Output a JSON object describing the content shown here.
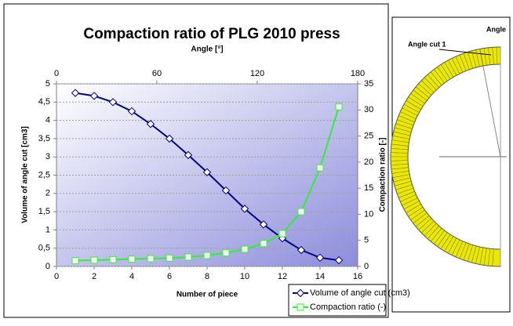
{
  "chart_data": {
    "type": "line",
    "title": "Compaction ratio of PLG 2010 press",
    "xlabel": "Number of piece",
    "ylabel": "Volume of angle cut [cm3]",
    "y2label": "Compaction ratio [-]",
    "x2label": "Angle [°]",
    "x": [
      1,
      2,
      3,
      4,
      5,
      6,
      7,
      8,
      9,
      10,
      11,
      12,
      13,
      14,
      15
    ],
    "series": [
      {
        "name": "Volume of angle cut (cm3)",
        "color": "#000080",
        "marker": "diamond",
        "values": [
          4.75,
          4.67,
          4.5,
          4.25,
          3.9,
          3.5,
          3.05,
          2.58,
          2.08,
          1.58,
          1.15,
          0.77,
          0.45,
          0.24,
          0.17
        ]
      },
      {
        "name": "Compaction ratio (-)",
        "color": "#33ee33",
        "marker": "square",
        "axis": "y2",
        "values": [
          1.1,
          1.2,
          1.3,
          1.4,
          1.5,
          1.6,
          1.8,
          2.1,
          2.6,
          3.3,
          4.4,
          6.3,
          10.5,
          18.9,
          30.6
        ]
      }
    ],
    "xlim": [
      0,
      16
    ],
    "xticks": [
      0,
      2,
      4,
      6,
      8,
      10,
      12,
      14,
      16
    ],
    "x2lim": [
      0,
      180
    ],
    "x2ticks": [
      0,
      60,
      120,
      180
    ],
    "ylim": [
      0,
      5
    ],
    "yticks": [
      0,
      {
        "value": 0.5,
        "label": "0,5"
      },
      1,
      {
        "value": 1.5,
        "label": "1,5"
      },
      2,
      {
        "value": 2.5,
        "label": "2,5"
      },
      3,
      {
        "value": 3.5,
        "label": "3,5"
      },
      4,
      {
        "value": 4.5,
        "label": "4,5"
      },
      5
    ],
    "y2lim": [
      0,
      35
    ],
    "y2ticks": [
      0,
      5,
      10,
      15,
      20,
      25,
      30,
      35
    ],
    "grid": true,
    "legend": "bottom-right"
  },
  "diagram": {
    "labels": [
      "Angle",
      "Angle cut 1"
    ]
  }
}
